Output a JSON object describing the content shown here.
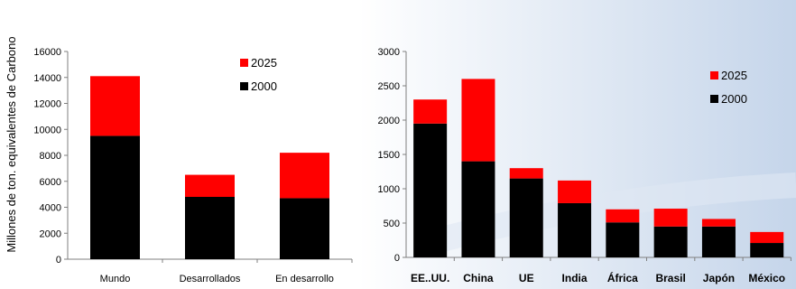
{
  "y_axis_title": "Millones de ton. equivalentes de Carbono",
  "colors": {
    "s2000": "#000000",
    "s2025": "#ff0000",
    "axis": "#7f7f7f",
    "background_right": "#c5d5ea"
  },
  "chart_data": [
    {
      "type": "bar",
      "stacked": true,
      "categories": [
        "Mundo",
        "Desarrollados",
        "En desarrollo"
      ],
      "series": [
        {
          "name": "2000",
          "values": [
            9500,
            4800,
            4700
          ]
        },
        {
          "name": "2025",
          "values": [
            4600,
            1700,
            3500
          ]
        }
      ],
      "ylim": [
        0,
        16000
      ],
      "yticks": [
        "0",
        "2000",
        "4000",
        "6000",
        "8000",
        "10000",
        "12000",
        "14000",
        "16000"
      ],
      "legend": [
        "2025",
        "2000"
      ],
      "legend_position": "top-right",
      "grid": false
    },
    {
      "type": "bar",
      "stacked": true,
      "categories": [
        "EE..UU.",
        "China",
        "UE",
        "India",
        "África",
        "Brasil",
        "Japón",
        "México"
      ],
      "series": [
        {
          "name": "2000",
          "values": [
            1950,
            1400,
            1150,
            790,
            510,
            450,
            450,
            210
          ]
        },
        {
          "name": "2025",
          "values": [
            350,
            1200,
            150,
            330,
            190,
            260,
            110,
            160
          ]
        }
      ],
      "ylim": [
        0,
        3000
      ],
      "yticks": [
        "0",
        "500",
        "1000",
        "1500",
        "2000",
        "2500",
        "3000"
      ],
      "legend": [
        "2025",
        "2000"
      ],
      "legend_position": "top-right",
      "grid": false
    }
  ]
}
